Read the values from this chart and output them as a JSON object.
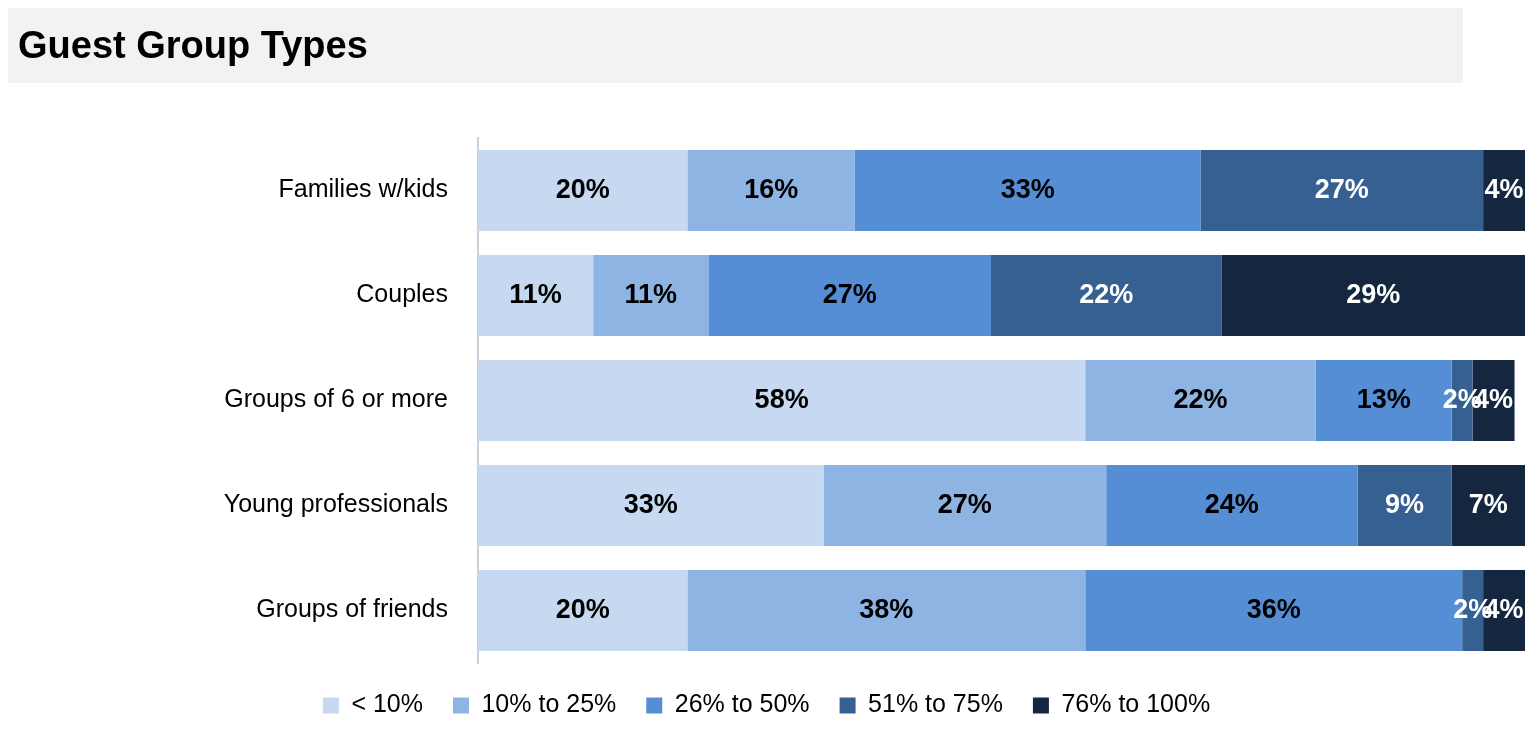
{
  "chart_data": {
    "type": "bar",
    "title": "Guest Group Types",
    "orientation": "horizontal",
    "stacked": true,
    "legend": "bottom",
    "grid": false,
    "tick_labels": "y",
    "categories": [
      "Families w/kids",
      "Couples",
      "Groups of 6 or more",
      "Young professionals",
      "Groups of friends"
    ],
    "series": [
      {
        "name": "< 10%",
        "color": "#c6d9f1",
        "values": [
          20,
          11,
          58,
          33,
          20
        ],
        "value_labels": [
          "20%",
          "11%",
          "58%",
          "33%",
          "20%"
        ]
      },
      {
        "name": "10% to 25%",
        "color": "#8eb4e3",
        "values": [
          16,
          11,
          22,
          27,
          38
        ],
        "value_labels": [
          "16%",
          "11%",
          "22%",
          "27%",
          "38%"
        ]
      },
      {
        "name": "26% to 50%",
        "color": "#558ed5",
        "values": [
          33,
          27,
          13,
          24,
          36
        ],
        "value_labels": [
          "33%",
          "27%",
          "13%",
          "24%",
          "36%"
        ]
      },
      {
        "name": "51% to 75%",
        "color": "#366092",
        "values": [
          27,
          22,
          2,
          9,
          2
        ],
        "value_labels": [
          "27%",
          "22%",
          "2%",
          "9%",
          "2%"
        ]
      },
      {
        "name": "76% to 100%",
        "color": "#14273f",
        "values": [
          4,
          29,
          4,
          7,
          4
        ],
        "value_labels": [
          "4%",
          "29%",
          "4%",
          "7%",
          "4%"
        ]
      }
    ]
  }
}
